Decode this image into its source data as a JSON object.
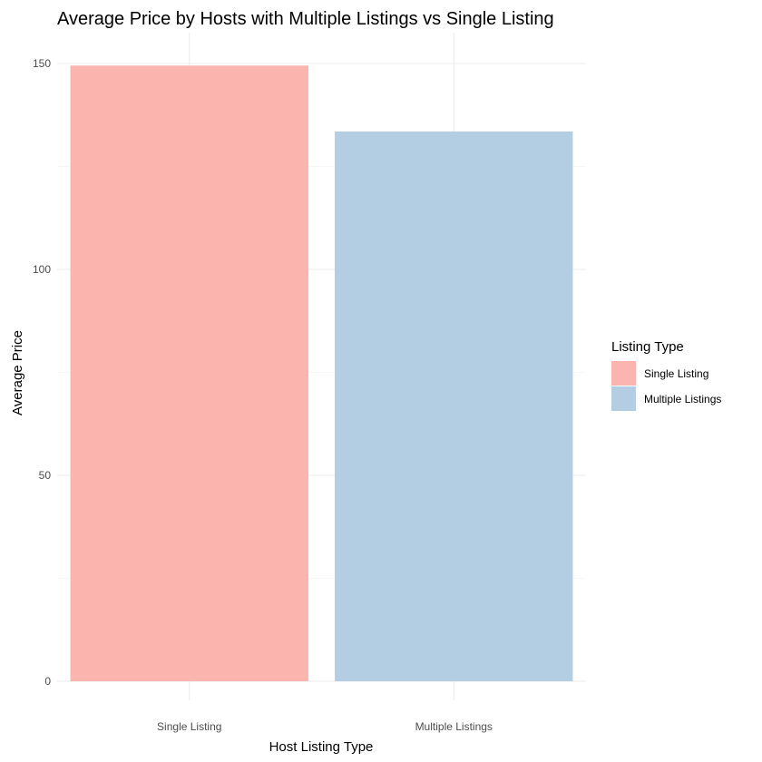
{
  "chart_data": {
    "type": "bar",
    "title": "Average Price by Hosts with Multiple Listings vs Single Listing",
    "xlabel": "Host Listing Type",
    "ylabel": "Average Price",
    "categories": [
      "Single Listing",
      "Multiple Listings"
    ],
    "values": [
      149.5,
      133.5
    ],
    "colors": [
      "#fbb4ae",
      "#b3cde3"
    ],
    "ylim": [
      0,
      150
    ],
    "yticks": [
      0,
      50,
      100,
      150
    ],
    "grid": true,
    "legend": {
      "title": "Listing Type",
      "placement": "right",
      "entries": [
        "Single Listing",
        "Multiple Listings"
      ]
    }
  }
}
